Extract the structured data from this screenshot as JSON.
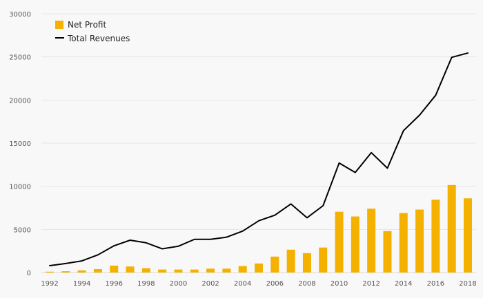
{
  "chart_data": {
    "type": "bar+line",
    "title": "",
    "xlabel": "",
    "ylabel": "",
    "categories": [
      1992,
      1993,
      1994,
      1995,
      1996,
      1997,
      1998,
      1999,
      2000,
      2001,
      2002,
      2003,
      2004,
      2005,
      2006,
      2007,
      2008,
      2009,
      2010,
      2011,
      2012,
      2013,
      2014,
      2015,
      2016,
      2017,
      2018
    ],
    "x_tick_labels": [
      "1992",
      "1994",
      "1996",
      "1998",
      "2000",
      "2002",
      "2004",
      "2006",
      "2008",
      "2010",
      "2012",
      "2014",
      "2016",
      "2018"
    ],
    "y_tick_labels": [
      "0",
      "5000",
      "10000",
      "15000",
      "20000",
      "25000",
      "30000"
    ],
    "ylim": [
      0,
      30000
    ],
    "grid": true,
    "legend_position": "top-left",
    "series": [
      {
        "name": "Net Profit",
        "type": "bar",
        "color": "#f5b100",
        "values": [
          100,
          150,
          250,
          400,
          800,
          700,
          500,
          350,
          350,
          350,
          450,
          450,
          750,
          1050,
          1850,
          2650,
          2250,
          2900,
          7050,
          6500,
          7400,
          4800,
          6900,
          7300,
          8450,
          10150,
          8600
        ]
      },
      {
        "name": "Total Revenues",
        "type": "line",
        "color": "#000000",
        "values": [
          800,
          1050,
          1350,
          2050,
          3100,
          3750,
          3450,
          2750,
          3050,
          3850,
          3850,
          4100,
          4800,
          6000,
          6650,
          7950,
          6350,
          7750,
          12700,
          11600,
          13900,
          12100,
          16450,
          18250,
          20550,
          24950,
          25450
        ]
      }
    ]
  }
}
